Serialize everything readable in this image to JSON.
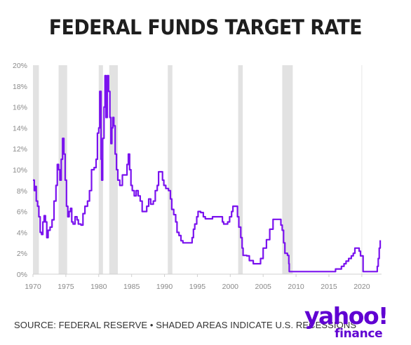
{
  "title": "FEDERAL FUNDS TARGET RATE",
  "footer": {
    "source": "SOURCE: FEDERAL RESERVE • SHADED AREAS INDICATE U.S. RECESSIONS"
  },
  "logo": {
    "main": "yahoo!",
    "sub": "finance"
  },
  "colors": {
    "line": "#7a12ee",
    "recession": "#e2e2e2",
    "grid": "#e6e6e6",
    "title": "#1e1e1e",
    "logo": "#6001d2"
  },
  "chart_data": {
    "type": "line",
    "title": "FEDERAL FUNDS TARGET RATE",
    "xlabel": "",
    "ylabel": "",
    "xlim": [
      1970,
      2023
    ],
    "ylim": [
      0,
      20
    ],
    "x_ticks": [
      "1970",
      "1975",
      "1980",
      "1985",
      "1990",
      "1995",
      "2000",
      "2005",
      "2010",
      "2015",
      "2020"
    ],
    "y_ticks": [
      "0%",
      "2%",
      "4%",
      "6%",
      "8%",
      "10%",
      "12%",
      "14%",
      "16%",
      "18%",
      "20%"
    ],
    "grid": {
      "horizontal": false,
      "vertical_at": [
        2020
      ]
    },
    "recessions": [
      [
        1970.0,
        1970.9
      ],
      [
        1973.9,
        1975.2
      ],
      [
        1980.0,
        1980.5
      ],
      [
        1981.6,
        1982.9
      ],
      [
        1990.5,
        1991.2
      ],
      [
        2001.2,
        2001.9
      ],
      [
        2007.9,
        2009.5
      ]
    ],
    "series": [
      {
        "values": [
          [
            1970.0,
            9.0
          ],
          [
            1970.2,
            8.0
          ],
          [
            1970.35,
            8.4
          ],
          [
            1970.5,
            7.0
          ],
          [
            1970.7,
            6.5
          ],
          [
            1970.9,
            5.5
          ],
          [
            1971.1,
            4.0
          ],
          [
            1971.3,
            3.8
          ],
          [
            1971.5,
            5.0
          ],
          [
            1971.7,
            5.6
          ],
          [
            1971.9,
            5.0
          ],
          [
            1972.1,
            3.5
          ],
          [
            1972.3,
            4.2
          ],
          [
            1972.6,
            4.5
          ],
          [
            1972.9,
            5.2
          ],
          [
            1973.2,
            7.0
          ],
          [
            1973.5,
            8.5
          ],
          [
            1973.7,
            10.5
          ],
          [
            1973.9,
            10.0
          ],
          [
            1974.1,
            9.0
          ],
          [
            1974.3,
            11.0
          ],
          [
            1974.5,
            13.0
          ],
          [
            1974.7,
            11.5
          ],
          [
            1974.9,
            9.0
          ],
          [
            1975.1,
            6.5
          ],
          [
            1975.3,
            5.5
          ],
          [
            1975.5,
            6.0
          ],
          [
            1975.7,
            6.3
          ],
          [
            1975.9,
            5.0
          ],
          [
            1976.1,
            4.8
          ],
          [
            1976.4,
            5.5
          ],
          [
            1976.7,
            5.2
          ],
          [
            1976.9,
            4.8
          ],
          [
            1977.3,
            4.7
          ],
          [
            1977.6,
            5.8
          ],
          [
            1977.9,
            6.5
          ],
          [
            1978.3,
            7.0
          ],
          [
            1978.6,
            8.0
          ],
          [
            1978.9,
            10.0
          ],
          [
            1979.3,
            10.2
          ],
          [
            1979.6,
            11.0
          ],
          [
            1979.8,
            13.5
          ],
          [
            1980.0,
            14.0
          ],
          [
            1980.15,
            17.5
          ],
          [
            1980.35,
            11.0
          ],
          [
            1980.45,
            9.0
          ],
          [
            1980.6,
            13.0
          ],
          [
            1980.8,
            16.0
          ],
          [
            1980.95,
            19.0
          ],
          [
            1981.1,
            15.0
          ],
          [
            1981.3,
            19.0
          ],
          [
            1981.5,
            17.5
          ],
          [
            1981.7,
            15.0
          ],
          [
            1981.85,
            12.5
          ],
          [
            1982.0,
            14.0
          ],
          [
            1982.15,
            15.0
          ],
          [
            1982.3,
            14.2
          ],
          [
            1982.5,
            11.5
          ],
          [
            1982.7,
            10.0
          ],
          [
            1982.9,
            9.0
          ],
          [
            1983.2,
            8.5
          ],
          [
            1983.6,
            9.5
          ],
          [
            1984.0,
            9.5
          ],
          [
            1984.3,
            10.5
          ],
          [
            1984.5,
            11.5
          ],
          [
            1984.7,
            10.0
          ],
          [
            1984.9,
            8.5
          ],
          [
            1985.1,
            8.0
          ],
          [
            1985.4,
            7.5
          ],
          [
            1985.7,
            8.0
          ],
          [
            1986.0,
            7.5
          ],
          [
            1986.3,
            7.0
          ],
          [
            1986.6,
            6.0
          ],
          [
            1987.0,
            6.0
          ],
          [
            1987.3,
            6.5
          ],
          [
            1987.6,
            7.2
          ],
          [
            1987.9,
            6.7
          ],
          [
            1988.3,
            7.0
          ],
          [
            1988.6,
            8.0
          ],
          [
            1988.9,
            8.5
          ],
          [
            1989.1,
            9.8
          ],
          [
            1989.4,
            9.8
          ],
          [
            1989.7,
            9.0
          ],
          [
            1989.9,
            8.5
          ],
          [
            1990.2,
            8.2
          ],
          [
            1990.6,
            8.0
          ],
          [
            1990.9,
            7.2
          ],
          [
            1991.1,
            6.2
          ],
          [
            1991.4,
            5.7
          ],
          [
            1991.7,
            5.0
          ],
          [
            1991.9,
            4.0
          ],
          [
            1992.2,
            3.7
          ],
          [
            1992.5,
            3.2
          ],
          [
            1992.8,
            3.0
          ],
          [
            1993.5,
            3.0
          ],
          [
            1994.0,
            3.0
          ],
          [
            1994.2,
            3.5
          ],
          [
            1994.4,
            4.3
          ],
          [
            1994.6,
            4.8
          ],
          [
            1994.9,
            5.5
          ],
          [
            1995.1,
            6.0
          ],
          [
            1995.5,
            5.9
          ],
          [
            1995.9,
            5.5
          ],
          [
            1996.2,
            5.3
          ],
          [
            1996.8,
            5.3
          ],
          [
            1997.3,
            5.5
          ],
          [
            1997.9,
            5.5
          ],
          [
            1998.5,
            5.5
          ],
          [
            1998.8,
            5.0
          ],
          [
            1999.0,
            4.8
          ],
          [
            1999.4,
            4.8
          ],
          [
            1999.6,
            5.0
          ],
          [
            1999.9,
            5.5
          ],
          [
            2000.2,
            6.0
          ],
          [
            2000.4,
            6.5
          ],
          [
            2000.9,
            6.5
          ],
          [
            2001.1,
            5.5
          ],
          [
            2001.3,
            4.5
          ],
          [
            2001.6,
            3.5
          ],
          [
            2001.8,
            2.5
          ],
          [
            2001.95,
            1.8
          ],
          [
            2002.5,
            1.75
          ],
          [
            2002.9,
            1.3
          ],
          [
            2003.5,
            1.0
          ],
          [
            2004.4,
            1.0
          ],
          [
            2004.6,
            1.5
          ],
          [
            2005.0,
            2.5
          ],
          [
            2005.5,
            3.3
          ],
          [
            2006.0,
            4.3
          ],
          [
            2006.5,
            5.25
          ],
          [
            2007.5,
            5.25
          ],
          [
            2007.7,
            4.7
          ],
          [
            2007.9,
            4.2
          ],
          [
            2008.1,
            3.0
          ],
          [
            2008.3,
            2.0
          ],
          [
            2008.7,
            1.8
          ],
          [
            2008.9,
            1.0
          ],
          [
            2008.97,
            0.25
          ],
          [
            2015.9,
            0.25
          ],
          [
            2016.0,
            0.5
          ],
          [
            2016.9,
            0.75
          ],
          [
            2017.3,
            1.0
          ],
          [
            2017.6,
            1.25
          ],
          [
            2018.0,
            1.5
          ],
          [
            2018.4,
            1.75
          ],
          [
            2018.7,
            2.0
          ],
          [
            2018.95,
            2.5
          ],
          [
            2019.5,
            2.5
          ],
          [
            2019.6,
            2.2
          ],
          [
            2019.8,
            1.75
          ],
          [
            2020.2,
            0.25
          ],
          [
            2022.1,
            0.25
          ],
          [
            2022.35,
            0.75
          ],
          [
            2022.5,
            1.5
          ],
          [
            2022.65,
            2.5
          ],
          [
            2022.8,
            3.25
          ]
        ]
      }
    ]
  }
}
